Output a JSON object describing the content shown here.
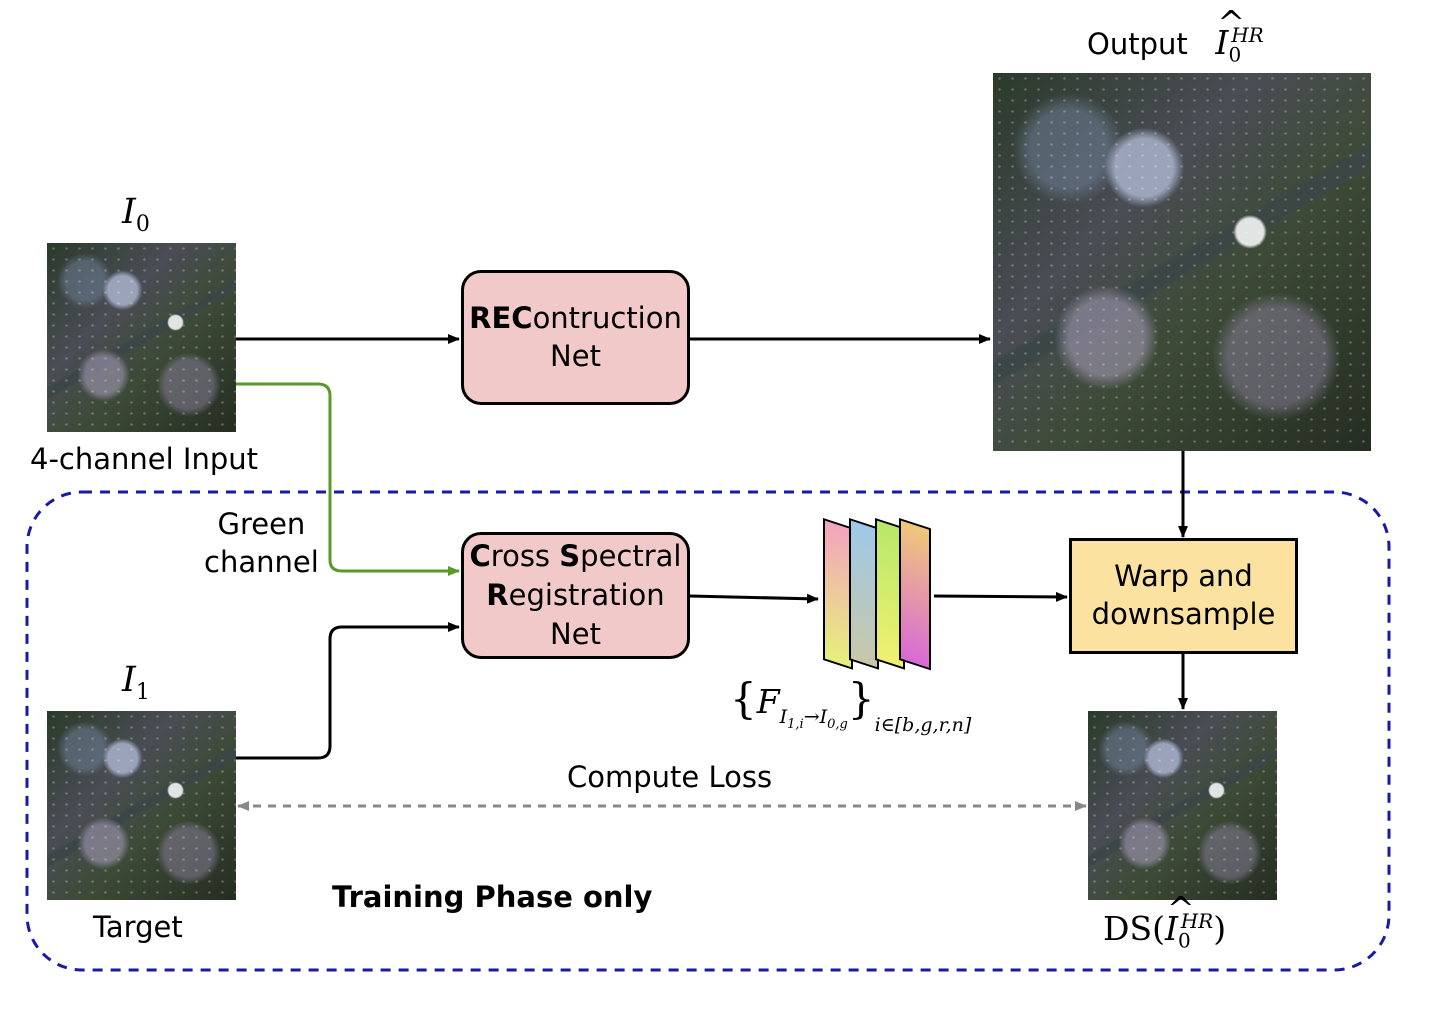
{
  "output_label": "Output",
  "output_symbol": {
    "base": "I",
    "sub": "0",
    "sup": "HR",
    "hat": "^"
  },
  "input_symbol": {
    "base": "I",
    "sub": "0"
  },
  "input_caption": "4-channel Input",
  "target_symbol": {
    "base": "I",
    "sub": "1"
  },
  "target_caption": "Target",
  "green_channel_label": [
    "Green",
    "channel"
  ],
  "recon_net": {
    "bold": "REC",
    "rest": "ontruction",
    "line2": "Net"
  },
  "csr_net": {
    "l1b1": "C",
    "l1r1": "ross ",
    "l1b2": "S",
    "l1r2": "pectral",
    "l2b": "R",
    "l2r": "egistration",
    "line3": "Net"
  },
  "warp_box": [
    "Warp and",
    "downsample"
  ],
  "flow_label": {
    "open": "{",
    "F": "F",
    "sub_a": "I",
    "sub_a_sub": "1,i",
    "arrow": "→",
    "sub_b": "I",
    "sub_b_sub": "0,g",
    "close": "}",
    "index": "i∈[b,g,r,n]"
  },
  "compute_loss": "Compute Loss",
  "training_phase": "Training Phase only",
  "ds_label": {
    "prefix": "DS(",
    "base": "I",
    "sub": "0",
    "sup": "HR",
    "suffix": ")",
    "hat": "^"
  },
  "colors": {
    "pink_box": "#f1c9c9",
    "yellow_box": "#fbe2a0",
    "green_arrow": "#5a9a2a",
    "dashed_border": "#1a1aa6",
    "loss_arrow": "#888888",
    "feature_gradients": [
      "#f4a3bf-#e6f07a",
      "#9ec9e8-#c8c8a8",
      "#b8e86a-#f0f070",
      "#f0c878-#d868d8"
    ]
  }
}
